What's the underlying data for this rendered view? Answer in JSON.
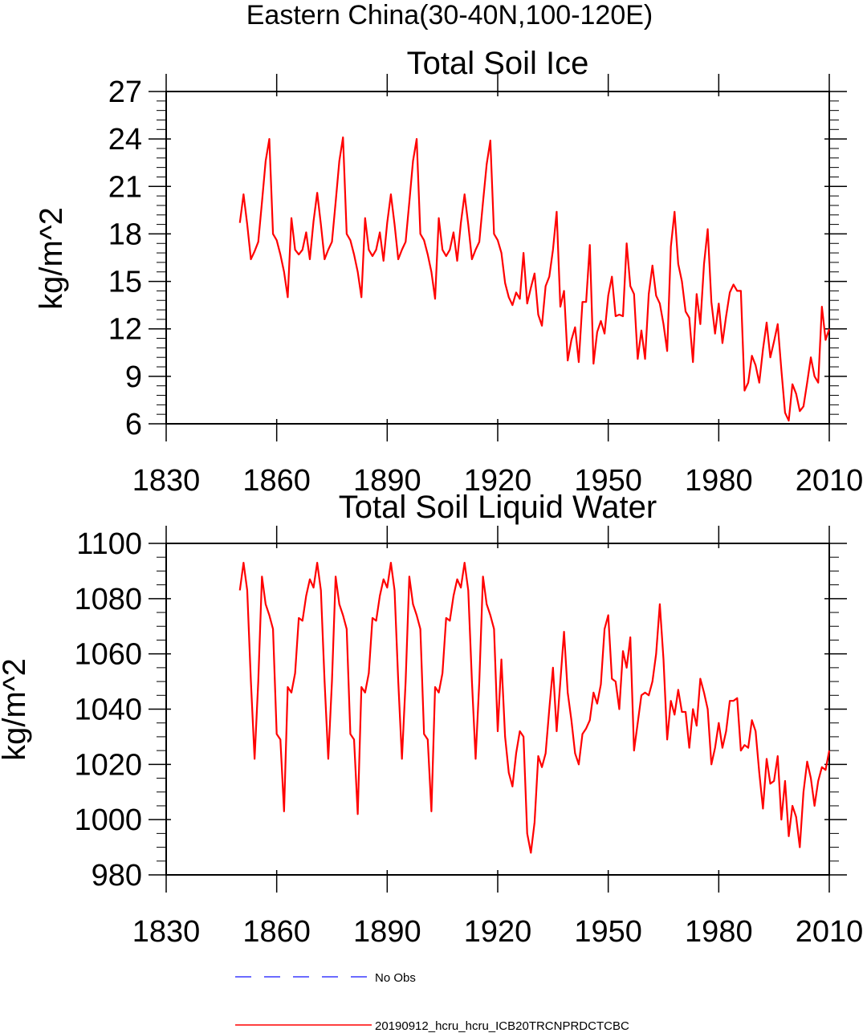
{
  "figure": {
    "title": "Eastern China(30-40N,100-120E)"
  },
  "colors": {
    "series": "#ff0000",
    "no_obs": "#3a3aff",
    "axis": "#000000",
    "background": "#ffffff"
  },
  "legend": {
    "placement": "bottom-center",
    "items": [
      {
        "label": "No Obs",
        "style": "dashed",
        "color": "#3a3aff"
      },
      {
        "label": "20190912_hcru_hcru_ICB20TRCNPRDCTCBC",
        "style": "solid",
        "color": "#ff0000"
      }
    ]
  },
  "chart_data": [
    {
      "type": "line",
      "title": "Total Soil Ice",
      "xlabel": "",
      "ylabel": "kg/m^2",
      "xlim": [
        1830,
        2010
      ],
      "ylim": [
        6,
        27
      ],
      "xticks": [
        1830,
        1860,
        1890,
        1920,
        1950,
        1980,
        2010
      ],
      "yticks": [
        6,
        9,
        12,
        15,
        18,
        21,
        24,
        27
      ],
      "grid": false,
      "series": [
        {
          "name": "20190912_hcru_hcru_ICB20TRCNPRDCTCBC",
          "x_start": 1850,
          "values": [
            18.7,
            20.5,
            18.6,
            16.4,
            16.9,
            17.5,
            20.0,
            22.6,
            24.0,
            18.0,
            17.6,
            16.7,
            15.6,
            14.0,
            19.0,
            17.0,
            16.7,
            17.0,
            18.1,
            16.4,
            18.8,
            20.6,
            18.6,
            16.4,
            17.0,
            17.5,
            20.0,
            22.6,
            24.1,
            18.0,
            17.6,
            16.7,
            15.6,
            14.0,
            19.0,
            17.0,
            16.6,
            17.0,
            18.1,
            16.3,
            18.7,
            20.5,
            18.6,
            16.4,
            17.0,
            17.5,
            20.0,
            22.6,
            24.0,
            18.0,
            17.6,
            16.7,
            15.6,
            13.9,
            19.0,
            17.0,
            16.6,
            17.0,
            18.1,
            16.3,
            18.7,
            20.5,
            18.6,
            16.4,
            17.0,
            17.5,
            20.0,
            22.4,
            23.9,
            18.0,
            17.6,
            16.8,
            14.9,
            14.0,
            13.5,
            14.3,
            13.9,
            16.8,
            13.6,
            14.6,
            15.5,
            12.9,
            12.2,
            14.7,
            15.3,
            17.0,
            19.4,
            13.4,
            14.4,
            10.0,
            11.3,
            12.1,
            9.9,
            13.7,
            13.7,
            17.3,
            9.8,
            11.8,
            12.5,
            11.7,
            14.1,
            15.3,
            12.8,
            12.9,
            12.8,
            17.4,
            14.7,
            14.2,
            10.1,
            11.9,
            10.1,
            14.2,
            16.0,
            14.1,
            13.6,
            12.3,
            10.6,
            17.2,
            19.4,
            16.1,
            15.0,
            13.1,
            12.7,
            9.9,
            14.2,
            12.3,
            16.1,
            18.3,
            13.7,
            11.7,
            13.6,
            11.1,
            12.8,
            14.3,
            14.8,
            14.4,
            14.4,
            8.1,
            8.6,
            10.3,
            9.7,
            8.6,
            10.7,
            12.4,
            10.2,
            11.2,
            12.3,
            9.4,
            6.7,
            6.2,
            8.5,
            7.9,
            6.8,
            7.1,
            8.6,
            10.2,
            9.0,
            8.6,
            13.4,
            11.3,
            12.0
          ]
        }
      ]
    },
    {
      "type": "line",
      "title": "Total Soil Liquid Water",
      "xlabel": "",
      "ylabel": "kg/m^2",
      "xlim": [
        1830,
        2010
      ],
      "ylim": [
        980,
        1100
      ],
      "xticks": [
        1830,
        1860,
        1890,
        1920,
        1950,
        1980,
        2010
      ],
      "yticks": [
        980,
        1000,
        1020,
        1040,
        1060,
        1080,
        1100
      ],
      "grid": false,
      "series": [
        {
          "name": "20190912_hcru_hcru_ICB20TRCNPRDCTCBC",
          "x_start": 1850,
          "values": [
            1083,
            1093,
            1083,
            1050,
            1022,
            1050,
            1088,
            1078,
            1074,
            1069,
            1031,
            1029,
            1003,
            1048,
            1046,
            1053,
            1073,
            1072,
            1081,
            1087,
            1084,
            1093,
            1083,
            1050,
            1022,
            1050,
            1088,
            1078,
            1074,
            1069,
            1031,
            1029,
            1002,
            1048,
            1046,
            1053,
            1073,
            1072,
            1081,
            1087,
            1084,
            1093,
            1083,
            1050,
            1022,
            1050,
            1088,
            1078,
            1074,
            1069,
            1031,
            1029,
            1003,
            1048,
            1046,
            1053,
            1073,
            1072,
            1081,
            1087,
            1084,
            1093,
            1083,
            1050,
            1022,
            1050,
            1088,
            1078,
            1074,
            1069,
            1032,
            1058,
            1030,
            1017,
            1012,
            1024,
            1032,
            1030,
            995,
            988,
            999,
            1023,
            1019,
            1024,
            1040,
            1055,
            1032,
            1050,
            1068,
            1046,
            1036,
            1024,
            1020,
            1031,
            1033,
            1036,
            1046,
            1042,
            1049,
            1069,
            1074,
            1051,
            1050,
            1040,
            1061,
            1055,
            1066,
            1025,
            1035,
            1045,
            1046,
            1045,
            1050,
            1060,
            1078,
            1058,
            1029,
            1043,
            1038,
            1047,
            1039,
            1039,
            1026,
            1040,
            1034,
            1051,
            1046,
            1040,
            1020,
            1026,
            1035,
            1026,
            1032,
            1043,
            1043,
            1044,
            1025,
            1027,
            1026,
            1036,
            1032,
            1017,
            1004,
            1022,
            1013,
            1014,
            1023,
            1000,
            1014,
            994,
            1005,
            1001,
            990,
            1010,
            1021,
            1015,
            1005,
            1014,
            1019,
            1018,
            1025
          ]
        }
      ]
    }
  ]
}
